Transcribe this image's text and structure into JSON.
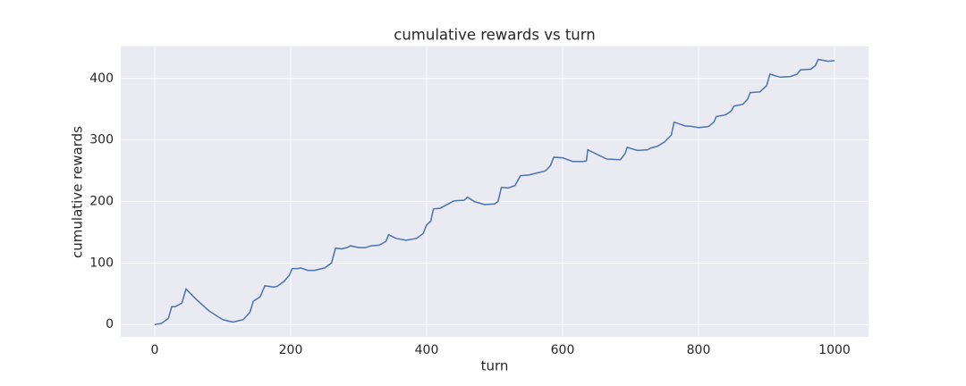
{
  "chart_data": {
    "type": "line",
    "title": "cumulative rewards vs turn",
    "x_label": "turn",
    "y_label": "cumulative rewards",
    "x": [
      0,
      10,
      20,
      25,
      30,
      40,
      46,
      60,
      80,
      100,
      115,
      130,
      140,
      145,
      155,
      162,
      175,
      180,
      190,
      198,
      202,
      210,
      215,
      225,
      235,
      250,
      260,
      266,
      275,
      283,
      288,
      300,
      310,
      318,
      330,
      340,
      344,
      355,
      370,
      385,
      395,
      400,
      406,
      410,
      420,
      430,
      440,
      455,
      460,
      470,
      485,
      500,
      505,
      510,
      520,
      530,
      538,
      550,
      565,
      575,
      582,
      587,
      600,
      615,
      630,
      635,
      637,
      650,
      665,
      685,
      692,
      695,
      710,
      725,
      730,
      740,
      750,
      760,
      764,
      780,
      790,
      800,
      815,
      823,
      826,
      840,
      848,
      852,
      865,
      872,
      876,
      890,
      900,
      905,
      920,
      935,
      945,
      950,
      965,
      972,
      976,
      990,
      1000
    ],
    "series": [
      {
        "name": "cumulative rewards",
        "color": "#4c72b0",
        "values": [
          0,
          2,
          10,
          29,
          29,
          35,
          58,
          42,
          22,
          8,
          4,
          8,
          20,
          38,
          45,
          63,
          61,
          62,
          70,
          80,
          91,
          91,
          92,
          88,
          88,
          92,
          100,
          124,
          123,
          125,
          128,
          125,
          125,
          128,
          129,
          135,
          146,
          140,
          137,
          140,
          148,
          162,
          168,
          188,
          189,
          195,
          201,
          202,
          207,
          200,
          195,
          196,
          200,
          223,
          222,
          226,
          242,
          243,
          247,
          250,
          258,
          272,
          271,
          265,
          265,
          266,
          284,
          277,
          269,
          268,
          278,
          288,
          283,
          284,
          287,
          290,
          297,
          308,
          329,
          323,
          322,
          320,
          322,
          330,
          338,
          341,
          347,
          355,
          358,
          366,
          377,
          378,
          388,
          407,
          402,
          403,
          407,
          414,
          415,
          421,
          431,
          428,
          429
        ]
      }
    ],
    "xlim": [
      -50,
      1050
    ],
    "ylim": [
      -20,
      452
    ],
    "xticks": [
      0,
      200,
      400,
      600,
      800,
      1000
    ],
    "yticks": [
      0,
      100,
      200,
      300,
      400
    ],
    "grid": true
  }
}
